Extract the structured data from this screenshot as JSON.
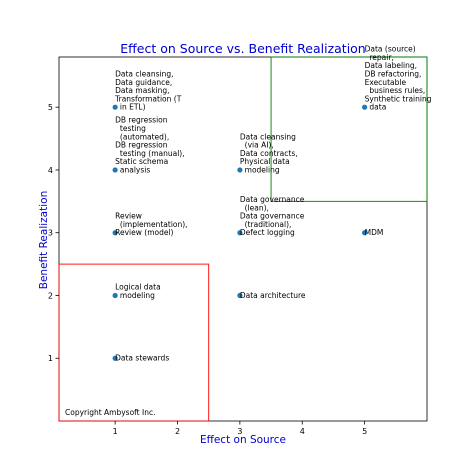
{
  "chart_data": {
    "type": "scatter",
    "title": "Effect on Source vs. Benefit Realization",
    "xlabel": "Effect on Source",
    "ylabel": "Benefit Realization",
    "xlim": [
      0.1,
      6.0
    ],
    "ylim": [
      0.0,
      5.8
    ],
    "xticks": [
      "1",
      "2",
      "3",
      "4",
      "5"
    ],
    "yticks": [
      "1",
      "2",
      "3",
      "4",
      "5"
    ],
    "grid": false,
    "point_color": "#1f77b4",
    "points": [
      {
        "x": 1,
        "y": 5,
        "label": [
          "Data cleansing,",
          "Data guidance,",
          "Data masking,",
          "Transformation (T",
          "  in ETL)"
        ]
      },
      {
        "x": 1,
        "y": 4,
        "label": [
          "DB regression",
          "  testing",
          "  (automated),",
          "DB regression",
          "  testing (manual),",
          "Static schema",
          "  analysis"
        ]
      },
      {
        "x": 1,
        "y": 3,
        "label": [
          "Review",
          "  (implementation),",
          "Review (model)"
        ]
      },
      {
        "x": 1,
        "y": 2,
        "label": [
          "Logical data",
          "  modeling"
        ]
      },
      {
        "x": 1,
        "y": 1,
        "label": [
          "Data stewards"
        ]
      },
      {
        "x": 3,
        "y": 4,
        "label": [
          "Data cleansing",
          "  (via AI),",
          "Data contracts,",
          "Physical data",
          "  modeling"
        ]
      },
      {
        "x": 3,
        "y": 3,
        "label": [
          "Data governance",
          "  (lean),",
          "Data governance",
          "  (traditional),",
          "Defect logging"
        ]
      },
      {
        "x": 3,
        "y": 2,
        "label": [
          "Data architecture"
        ]
      },
      {
        "x": 5,
        "y": 5,
        "label": [
          "Data (source)",
          "  repair,",
          "Data labeling,",
          "DB refactoring,",
          "Executable",
          "  business rules,",
          "Synthetic training",
          "  data"
        ]
      },
      {
        "x": 5,
        "y": 3,
        "label": [
          "MDM"
        ]
      }
    ],
    "regions": [
      {
        "name": "low-effect-low-benefit",
        "color": "#ff0000",
        "x": [
          0.1,
          2.5
        ],
        "y": [
          0.0,
          2.5
        ]
      },
      {
        "name": "high-effect-high-benefit",
        "color": "#008000",
        "x": [
          3.5,
          6.0
        ],
        "y": [
          3.5,
          5.8
        ]
      }
    ],
    "annotation": "Copyright Ambysoft Inc."
  }
}
